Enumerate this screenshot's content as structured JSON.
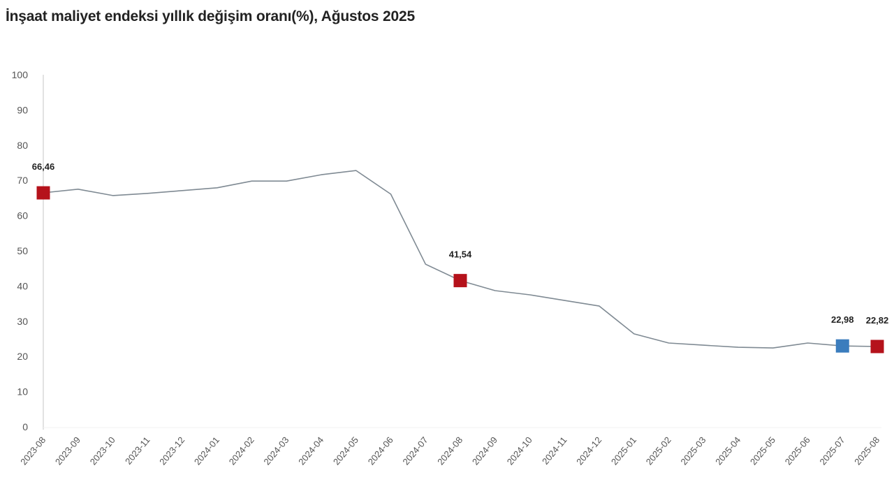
{
  "title": "İnşaat maliyet endeksi yıllık değişim oranı(%), Ağustos 2025",
  "colors": {
    "line": "#7f8a93",
    "highlight_red": "#b5121b",
    "highlight_blue": "#3b7dbd",
    "axis": "#d9d9d9",
    "text": "#555555"
  },
  "chart_data": {
    "type": "line",
    "title": "İnşaat maliyet endeksi yıllık değişim oranı(%), Ağustos 2025",
    "xlabel": "",
    "ylabel": "",
    "ylim": [
      0,
      100
    ],
    "yticks": [
      0,
      10,
      20,
      30,
      40,
      50,
      60,
      70,
      80,
      90,
      100
    ],
    "grid": false,
    "legend": null,
    "categories": [
      "2023-08",
      "2023-09",
      "2023-10",
      "2023-11",
      "2023-12",
      "2024-01",
      "2024-02",
      "2024-03",
      "2024-04",
      "2024-05",
      "2024-06",
      "2024-07",
      "2024-08",
      "2024-09",
      "2024-10",
      "2024-11",
      "2024-12",
      "2025-01",
      "2025-02",
      "2025-03",
      "2025-04",
      "2025-05",
      "2025-06",
      "2025-07",
      "2025-08"
    ],
    "series": [
      {
        "name": "Yıllık değişim oranı (%)",
        "values": [
          66.46,
          67.5,
          65.7,
          66.3,
          67.1,
          67.9,
          69.8,
          69.8,
          71.6,
          72.8,
          66.1,
          46.2,
          41.54,
          38.7,
          37.5,
          35.9,
          34.3,
          26.4,
          23.8,
          23.2,
          22.6,
          22.4,
          23.8,
          22.98,
          22.82
        ]
      }
    ],
    "annotations": [
      {
        "category": "2023-08",
        "label": "66,46",
        "marker_color": "#b5121b"
      },
      {
        "category": "2024-08",
        "label": "41,54",
        "marker_color": "#b5121b"
      },
      {
        "category": "2025-07",
        "label": "22,98",
        "marker_color": "#3b7dbd"
      },
      {
        "category": "2025-08",
        "label": "22,82",
        "marker_color": "#b5121b"
      }
    ]
  }
}
